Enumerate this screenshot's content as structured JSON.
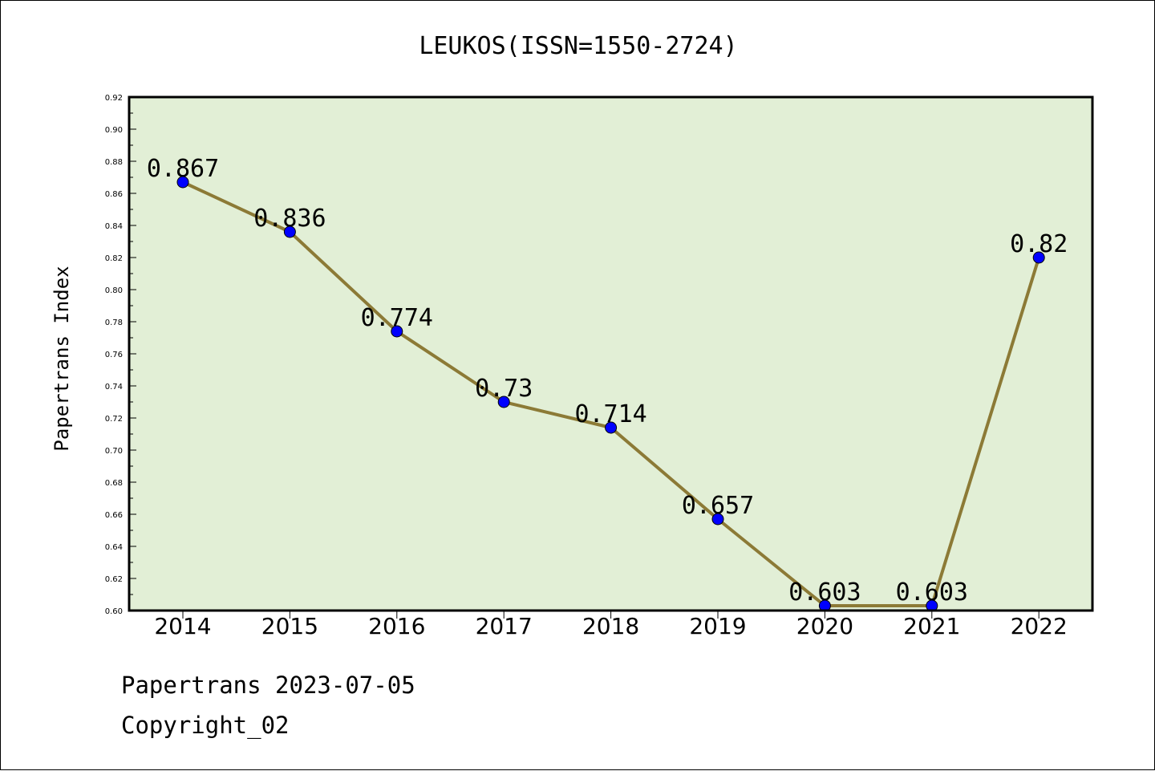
{
  "chart_data": {
    "type": "line",
    "title": "LEUKOS(ISSN=1550-2724)",
    "ylabel": "Papertrans Index",
    "xlabel": "",
    "categories": [
      "2014",
      "2015",
      "2016",
      "2017",
      "2018",
      "2019",
      "2020",
      "2021",
      "2022"
    ],
    "values": [
      0.867,
      0.836,
      0.774,
      0.73,
      0.714,
      0.657,
      0.603,
      0.603,
      0.82
    ],
    "data_labels": [
      "0.867",
      "0.836",
      "0.774",
      "0.73",
      "0.714",
      "0.657",
      "0.603",
      "0.603",
      "0.82"
    ],
    "ylim": [
      0.6,
      0.92
    ],
    "yticks": [
      "0.60",
      "0.62",
      "0.64",
      "0.66",
      "0.68",
      "0.70",
      "0.72",
      "0.74",
      "0.76",
      "0.78",
      "0.80",
      "0.82",
      "0.84",
      "0.86",
      "0.88",
      "0.90",
      "0.92"
    ],
    "grid": false,
    "legend": "none",
    "colors": {
      "plot_background": "#e2efd6",
      "line": "#8c7a36",
      "marker": "#0000ff"
    }
  },
  "footer": {
    "line1": "Papertrans 2023-07-05",
    "line2": "Copyright_02"
  }
}
